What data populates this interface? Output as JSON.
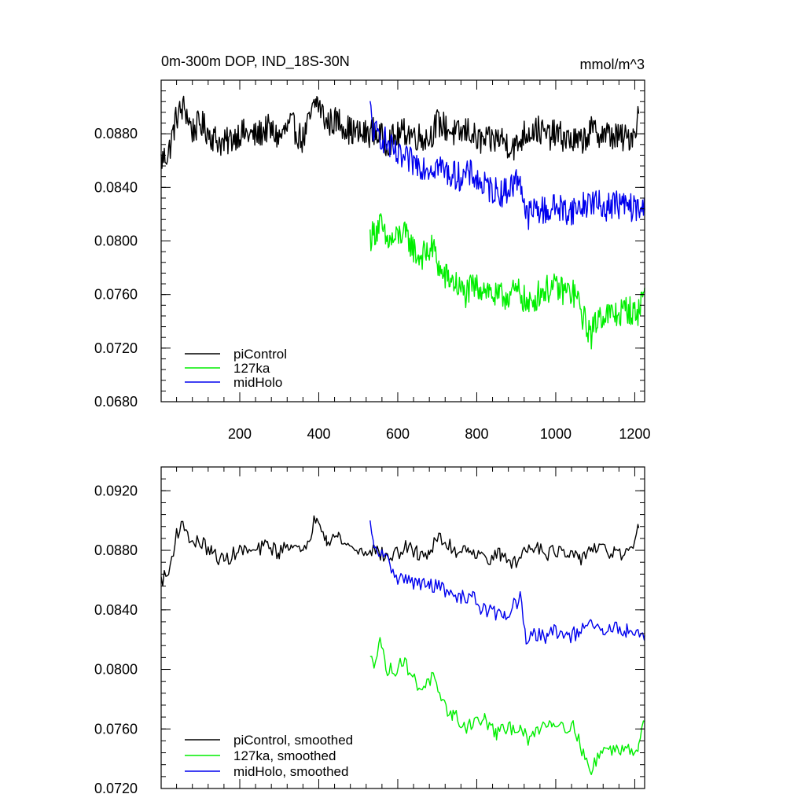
{
  "chart_data": [
    {
      "type": "line",
      "title": "0m-300m DOP, IND_18S-30N",
      "units": "mmol/m^3",
      "xlim": [
        1,
        1225
      ],
      "ylim": [
        0.068,
        0.092
      ],
      "xticks": [
        200,
        400,
        600,
        800,
        1000,
        1200
      ],
      "xtick_labels": [
        "200",
        "400",
        "600",
        "800",
        "1000",
        "1200"
      ],
      "yticks": [
        0.068,
        0.072,
        0.076,
        0.08,
        0.084,
        0.088
      ],
      "ytick_labels": [
        "0.0680",
        "0.0720",
        "0.0760",
        "0.0800",
        "0.0840",
        "0.0880"
      ],
      "legend_position": "bottom-left",
      "grid": false,
      "series": [
        {
          "name": "piControl",
          "color": "#000000",
          "points": [
            [
              1,
              0.086
            ],
            [
              20,
              0.0866
            ],
            [
              40,
              0.0893
            ],
            [
              60,
              0.09
            ],
            [
              80,
              0.0882
            ],
            [
              100,
              0.0888
            ],
            [
              130,
              0.0878
            ],
            [
              160,
              0.0872
            ],
            [
              200,
              0.0881
            ],
            [
              240,
              0.0878
            ],
            [
              270,
              0.0884
            ],
            [
              300,
              0.0877
            ],
            [
              330,
              0.0887
            ],
            [
              360,
              0.0875
            ],
            [
              380,
              0.0893
            ],
            [
              395,
              0.0905
            ],
            [
              420,
              0.0888
            ],
            [
              450,
              0.089
            ],
            [
              480,
              0.0882
            ],
            [
              510,
              0.0879
            ],
            [
              540,
              0.0882
            ],
            [
              570,
              0.0874
            ],
            [
              600,
              0.0878
            ],
            [
              620,
              0.0882
            ],
            [
              650,
              0.0878
            ],
            [
              680,
              0.0877
            ],
            [
              700,
              0.0888
            ],
            [
              720,
              0.0885
            ],
            [
              750,
              0.0879
            ],
            [
              780,
              0.0883
            ],
            [
              800,
              0.0875
            ],
            [
              830,
              0.0874
            ],
            [
              860,
              0.0877
            ],
            [
              880,
              0.0872
            ],
            [
              900,
              0.087
            ],
            [
              920,
              0.088
            ],
            [
              950,
              0.0884
            ],
            [
              980,
              0.0878
            ],
            [
              1000,
              0.088
            ],
            [
              1030,
              0.0876
            ],
            [
              1060,
              0.0873
            ],
            [
              1090,
              0.0882
            ],
            [
              1120,
              0.088
            ],
            [
              1150,
              0.0878
            ],
            [
              1180,
              0.0876
            ],
            [
              1200,
              0.0882
            ],
            [
              1210,
              0.0895
            ]
          ]
        },
        {
          "name": "127ka",
          "color": "#00ee00",
          "points": [
            [
              530,
              0.0803
            ],
            [
              540,
              0.0806
            ],
            [
              555,
              0.0813
            ],
            [
              570,
              0.08
            ],
            [
              590,
              0.08
            ],
            [
              610,
              0.0806
            ],
            [
              630,
              0.08
            ],
            [
              650,
              0.0788
            ],
            [
              670,
              0.079
            ],
            [
              690,
              0.0795
            ],
            [
              710,
              0.0775
            ],
            [
              740,
              0.077
            ],
            [
              770,
              0.076
            ],
            [
              790,
              0.0765
            ],
            [
              820,
              0.0766
            ],
            [
              850,
              0.0757
            ],
            [
              880,
              0.076
            ],
            [
              910,
              0.0762
            ],
            [
              930,
              0.075
            ],
            [
              960,
              0.0762
            ],
            [
              990,
              0.0765
            ],
            [
              1020,
              0.0763
            ],
            [
              1050,
              0.076
            ],
            [
              1070,
              0.0742
            ],
            [
              1090,
              0.073
            ],
            [
              1110,
              0.0745
            ],
            [
              1130,
              0.0745
            ],
            [
              1160,
              0.0745
            ],
            [
              1180,
              0.075
            ],
            [
              1200,
              0.0745
            ],
            [
              1210,
              0.0748
            ],
            [
              1225,
              0.0765
            ]
          ]
        },
        {
          "name": "midHolo",
          "color": "#0000ee",
          "points": [
            [
              530,
              0.0898
            ],
            [
              540,
              0.088
            ],
            [
              560,
              0.0878
            ],
            [
              580,
              0.087
            ],
            [
              600,
              0.0862
            ],
            [
              620,
              0.086
            ],
            [
              650,
              0.0858
            ],
            [
              680,
              0.0855
            ],
            [
              700,
              0.0857
            ],
            [
              730,
              0.085
            ],
            [
              760,
              0.0848
            ],
            [
              790,
              0.085
            ],
            [
              810,
              0.0842
            ],
            [
              840,
              0.0838
            ],
            [
              870,
              0.0836
            ],
            [
              890,
              0.0842
            ],
            [
              910,
              0.0848
            ],
            [
              925,
              0.0818
            ],
            [
              950,
              0.0824
            ],
            [
              980,
              0.0822
            ],
            [
              1000,
              0.0826
            ],
            [
              1030,
              0.0822
            ],
            [
              1060,
              0.0825
            ],
            [
              1090,
              0.083
            ],
            [
              1120,
              0.0825
            ],
            [
              1150,
              0.0828
            ],
            [
              1180,
              0.0826
            ],
            [
              1200,
              0.0824
            ],
            [
              1225,
              0.0823
            ]
          ]
        }
      ]
    },
    {
      "type": "line",
      "xlim": [
        1,
        1225
      ],
      "ylim": [
        0.072,
        0.0936
      ],
      "xticks": [
        200,
        400,
        600,
        800,
        1000,
        1200
      ],
      "yticks": [
        0.072,
        0.076,
        0.08,
        0.084,
        0.088,
        0.092
      ],
      "ytick_labels": [
        "0.0720",
        "0.0760",
        "0.0800",
        "0.0840",
        "0.0880",
        "0.0920"
      ],
      "legend_position": "bottom-left",
      "grid": false,
      "series": [
        {
          "name": "piControl, smoothed",
          "color": "#000000",
          "points": [
            [
              1,
              0.086
            ],
            [
              20,
              0.0864
            ],
            [
              40,
              0.0892
            ],
            [
              60,
              0.0897
            ],
            [
              80,
              0.0884
            ],
            [
              100,
              0.0886
            ],
            [
              130,
              0.0878
            ],
            [
              160,
              0.0873
            ],
            [
              200,
              0.088
            ],
            [
              240,
              0.0879
            ],
            [
              270,
              0.0884
            ],
            [
              300,
              0.0878
            ],
            [
              330,
              0.0886
            ],
            [
              360,
              0.0876
            ],
            [
              380,
              0.0892
            ],
            [
              395,
              0.0905
            ],
            [
              420,
              0.0888
            ],
            [
              450,
              0.0889
            ],
            [
              480,
              0.0882
            ],
            [
              510,
              0.0879
            ],
            [
              540,
              0.0881
            ],
            [
              570,
              0.0875
            ],
            [
              600,
              0.0878
            ],
            [
              620,
              0.0882
            ],
            [
              650,
              0.0878
            ],
            [
              680,
              0.0878
            ],
            [
              700,
              0.0888
            ],
            [
              720,
              0.0885
            ],
            [
              750,
              0.0879
            ],
            [
              780,
              0.0883
            ],
            [
              800,
              0.0876
            ],
            [
              830,
              0.0875
            ],
            [
              860,
              0.0877
            ],
            [
              880,
              0.0873
            ],
            [
              900,
              0.0871
            ],
            [
              920,
              0.088
            ],
            [
              950,
              0.0884
            ],
            [
              980,
              0.0878
            ],
            [
              1000,
              0.088
            ],
            [
              1030,
              0.0876
            ],
            [
              1060,
              0.0874
            ],
            [
              1090,
              0.0882
            ],
            [
              1120,
              0.088
            ],
            [
              1150,
              0.0878
            ],
            [
              1180,
              0.0877
            ],
            [
              1200,
              0.0882
            ],
            [
              1210,
              0.0895
            ]
          ]
        },
        {
          "name": "127ka, smoothed",
          "color": "#00ee00",
          "points": [
            [
              530,
              0.0806
            ],
            [
              540,
              0.0805
            ],
            [
              555,
              0.0822
            ],
            [
              570,
              0.08
            ],
            [
              590,
              0.0799
            ],
            [
              610,
              0.0806
            ],
            [
              630,
              0.08
            ],
            [
              650,
              0.0788
            ],
            [
              670,
              0.079
            ],
            [
              690,
              0.0795
            ],
            [
              710,
              0.0776
            ],
            [
              740,
              0.077
            ],
            [
              770,
              0.0761
            ],
            [
              790,
              0.0765
            ],
            [
              820,
              0.0766
            ],
            [
              850,
              0.0757
            ],
            [
              880,
              0.076
            ],
            [
              910,
              0.0762
            ],
            [
              930,
              0.0751
            ],
            [
              960,
              0.0762
            ],
            [
              990,
              0.0765
            ],
            [
              1020,
              0.0763
            ],
            [
              1050,
              0.076
            ],
            [
              1070,
              0.0743
            ],
            [
              1090,
              0.073
            ],
            [
              1110,
              0.0745
            ],
            [
              1130,
              0.0746
            ],
            [
              1160,
              0.0746
            ],
            [
              1180,
              0.075
            ],
            [
              1200,
              0.0745
            ],
            [
              1210,
              0.0748
            ],
            [
              1225,
              0.0765
            ]
          ]
        },
        {
          "name": "midHolo, smoothed",
          "color": "#0000ee",
          "points": [
            [
              530,
              0.0897
            ],
            [
              540,
              0.088
            ],
            [
              560,
              0.0878
            ],
            [
              580,
              0.087
            ],
            [
              600,
              0.0862
            ],
            [
              620,
              0.086
            ],
            [
              650,
              0.0858
            ],
            [
              680,
              0.0856
            ],
            [
              700,
              0.0857
            ],
            [
              730,
              0.085
            ],
            [
              760,
              0.0848
            ],
            [
              790,
              0.085
            ],
            [
              810,
              0.0842
            ],
            [
              840,
              0.0838
            ],
            [
              870,
              0.0836
            ],
            [
              890,
              0.0842
            ],
            [
              910,
              0.0848
            ],
            [
              925,
              0.0818
            ],
            [
              950,
              0.0824
            ],
            [
              980,
              0.0822
            ],
            [
              1000,
              0.0826
            ],
            [
              1030,
              0.0822
            ],
            [
              1060,
              0.0825
            ],
            [
              1090,
              0.083
            ],
            [
              1120,
              0.0825
            ],
            [
              1150,
              0.0828
            ],
            [
              1180,
              0.0826
            ],
            [
              1200,
              0.0824
            ],
            [
              1225,
              0.0823
            ]
          ]
        }
      ]
    }
  ]
}
